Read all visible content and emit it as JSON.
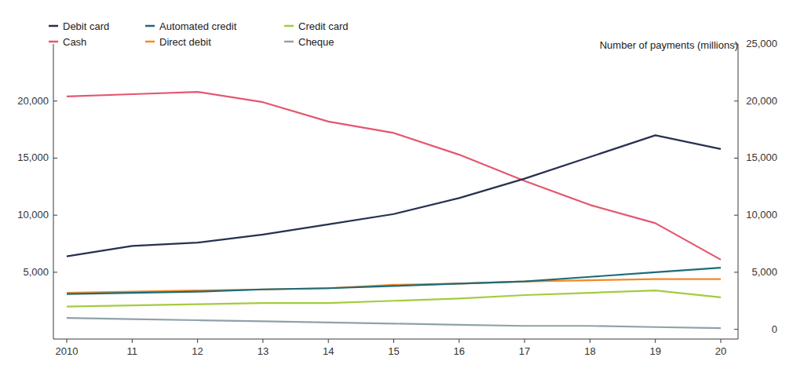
{
  "chart_data": {
    "type": "line",
    "y_label": "Number of payments (millions)",
    "categories": [
      "2010",
      "11",
      "12",
      "13",
      "14",
      "15",
      "16",
      "17",
      "18",
      "19",
      "20"
    ],
    "series": [
      {
        "name": "Debit card",
        "color": "#27314f",
        "values": [
          6400,
          7300,
          7600,
          8300,
          9200,
          10100,
          11500,
          13200,
          15100,
          17000,
          15800
        ]
      },
      {
        "name": "Cash",
        "color": "#e5566f",
        "values": [
          20400,
          20600,
          20800,
          19900,
          18200,
          17200,
          15300,
          13000,
          10900,
          9300,
          6100
        ]
      },
      {
        "name": "Automated credit",
        "color": "#1d6b78",
        "values": [
          3100,
          3200,
          3300,
          3500,
          3600,
          3800,
          4000,
          4200,
          4600,
          5000,
          5400
        ]
      },
      {
        "name": "Direct debit",
        "color": "#f28a26",
        "values": [
          3200,
          3300,
          3400,
          3500,
          3600,
          3900,
          4000,
          4200,
          4300,
          4400,
          4400
        ]
      },
      {
        "name": "Credit card",
        "color": "#a3cc3e",
        "values": [
          2000,
          2100,
          2200,
          2300,
          2300,
          2500,
          2700,
          3000,
          3200,
          3400,
          2800
        ]
      },
      {
        "name": "Cheque",
        "color": "#8fa2a8",
        "values": [
          1000,
          900,
          800,
          700,
          600,
          500,
          400,
          300,
          300,
          200,
          100
        ]
      }
    ],
    "ylim": [
      -850,
      25000
    ],
    "yticks": [
      0,
      {
        "value": 5000,
        "label": "5,000"
      },
      {
        "value": 10000,
        "label": "10,000"
      },
      {
        "value": 15000,
        "label": "15,000"
      },
      {
        "value": 20000,
        "label": "20,000"
      },
      {
        "value": 25000,
        "label": "25,000"
      }
    ],
    "grid": false,
    "legend": "top-left"
  }
}
